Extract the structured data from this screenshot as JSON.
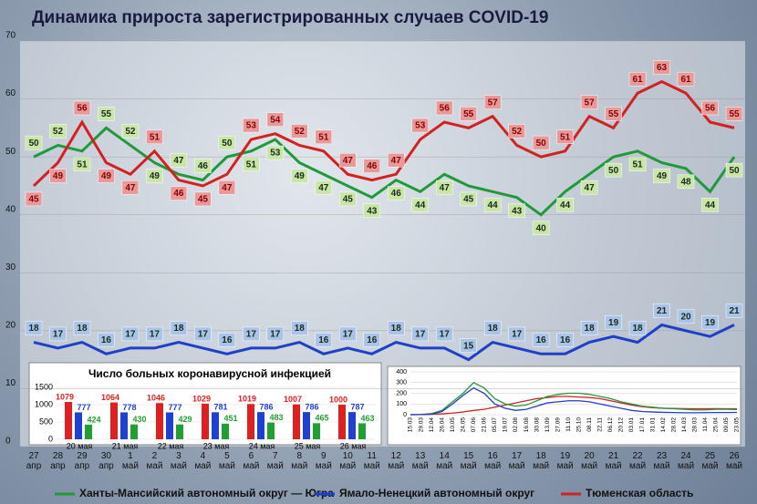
{
  "chart_data": [
    {
      "type": "line",
      "title": "Динамика прироста зарегистрированных случаев COVID-19",
      "categories": [
        "27 апр",
        "28 апр",
        "29 апр",
        "30 апр",
        "1 май",
        "2 май",
        "3 май",
        "4 май",
        "5 май",
        "6 май",
        "7 май",
        "8 май",
        "9 май",
        "10 май",
        "11 май",
        "12 май",
        "13 май",
        "14 май",
        "15 май",
        "16 май",
        "17 май",
        "18 май",
        "19 май",
        "20 май",
        "21 май",
        "22 май",
        "23 май",
        "24 май",
        "25 май",
        "26 май"
      ],
      "series": [
        {
          "name": "Ханты-Мансийский автономный округ — Югра",
          "color": "#1f9a3a",
          "label_bg": "#c9e6a8",
          "values": [
            50,
            52,
            51,
            55,
            52,
            49,
            47,
            46,
            50,
            51,
            53,
            49,
            47,
            45,
            43,
            46,
            44,
            47,
            45,
            44,
            43,
            40,
            44,
            47,
            50,
            51,
            49,
            48,
            44,
            50
          ]
        },
        {
          "name": "Ямало-Ненецкий автономный округ",
          "color": "#1f3fc8",
          "label_bg": "#a9c4e8",
          "values": [
            18,
            17,
            18,
            16,
            17,
            17,
            18,
            17,
            16,
            17,
            17,
            18,
            16,
            17,
            16,
            18,
            17,
            17,
            15,
            18,
            17,
            16,
            16,
            18,
            19,
            18,
            21,
            20,
            19,
            21
          ]
        },
        {
          "name": "Тюменская область",
          "color": "#d42020",
          "label_bg": "#e89a9a",
          "values": [
            45,
            49,
            56,
            49,
            47,
            51,
            46,
            45,
            47,
            53,
            54,
            52,
            51,
            47,
            46,
            47,
            53,
            56,
            55,
            57,
            52,
            50,
            51,
            57,
            55,
            61,
            63,
            61,
            56,
            55
          ]
        }
      ],
      "ylim": [
        0,
        70
      ],
      "yticks": [
        0,
        10,
        20,
        30,
        40,
        50,
        60,
        70
      ],
      "grid": true,
      "legend": "bottom"
    },
    {
      "type": "bar",
      "title": "Число больных коронавирусной инфекцией",
      "categories": [
        "20 мая",
        "21 мая",
        "22 мая",
        "23 мая",
        "24 мая",
        "25 мая",
        "26 мая"
      ],
      "series": [
        {
          "color": "#e02020",
          "values": [
            1079,
            1064,
            1046,
            1029,
            1019,
            1007,
            1000
          ]
        },
        {
          "color": "#2040d0",
          "values": [
            777,
            778,
            777,
            781,
            786,
            786,
            787
          ]
        },
        {
          "color": "#20a030",
          "values": [
            424,
            430,
            429,
            451,
            483,
            465,
            463
          ]
        }
      ],
      "ylim": [
        0,
        1500
      ],
      "yticks": [
        0,
        500,
        1000,
        1500
      ]
    },
    {
      "type": "line",
      "categories": [
        "15.03",
        "29.03",
        "12.04",
        "26.04",
        "10.05",
        "24.05",
        "07.06",
        "21.06",
        "05.07",
        "19.07",
        "02.08",
        "16.08",
        "30.08",
        "13.09",
        "27.09",
        "11.10",
        "25.10",
        "08.11",
        "22.11",
        "06.12",
        "20.12",
        "03.01",
        "17.01",
        "31.01",
        "14.02",
        "28.02",
        "14.03",
        "28.03",
        "11.04",
        "25.04",
        "09.05",
        "23.05"
      ],
      "series": [
        {
          "color": "#d42020",
          "values": [
            0,
            1,
            3,
            8,
            15,
            25,
            40,
            50,
            70,
            90,
            110,
            130,
            150,
            160,
            170,
            170,
            165,
            160,
            150,
            130,
            110,
            90,
            75,
            65,
            60,
            58,
            56,
            55,
            55,
            56,
            55,
            55
          ]
        },
        {
          "color": "#1f9a3a",
          "values": [
            0,
            2,
            10,
            40,
            120,
            200,
            300,
            250,
            150,
            100,
            80,
            90,
            130,
            170,
            190,
            200,
            200,
            190,
            170,
            150,
            120,
            100,
            80,
            70,
            60,
            55,
            50,
            45,
            45,
            50,
            50,
            48
          ]
        },
        {
          "color": "#1f3fc8",
          "values": [
            0,
            1,
            5,
            30,
            100,
            180,
            250,
            200,
            100,
            60,
            40,
            50,
            80,
            110,
            120,
            130,
            130,
            120,
            100,
            80,
            60,
            40,
            30,
            25,
            22,
            20,
            18,
            18,
            19,
            20,
            20,
            21
          ]
        }
      ],
      "ylim": [
        0,
        400
      ],
      "yticks": [
        0,
        100,
        200,
        300,
        400
      ]
    }
  ]
}
